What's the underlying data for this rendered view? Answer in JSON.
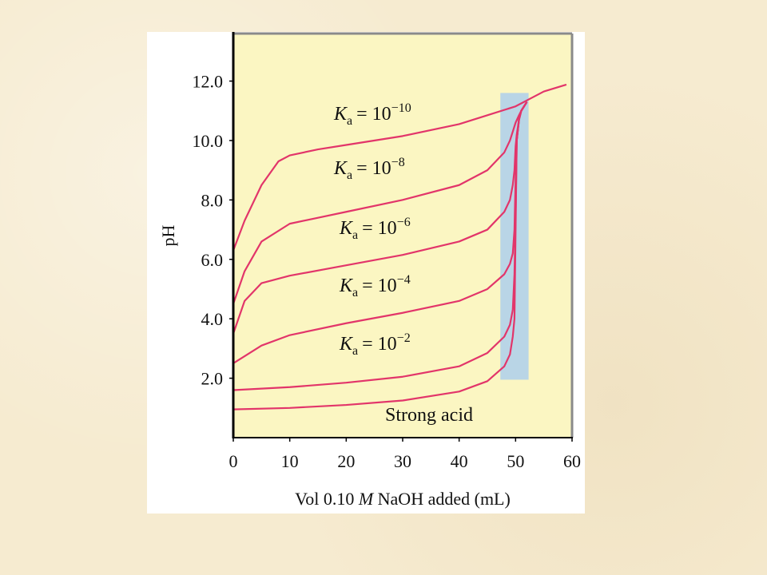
{
  "chart_data": {
    "type": "line",
    "xlabel": {
      "before": "Vol 0.10",
      "italic": "M",
      "after": "NaOH added (mL)"
    },
    "ylabel": "pH",
    "xlim": [
      0,
      60
    ],
    "ylim": [
      0,
      13.6
    ],
    "xticks": [
      0,
      10,
      20,
      30,
      40,
      50,
      60
    ],
    "yticks": [
      {
        "value": 2,
        "label": "2.0"
      },
      {
        "value": 4,
        "label": "4.0"
      },
      {
        "value": 6,
        "label": "6.0"
      },
      {
        "value": 8,
        "label": "8.0"
      },
      {
        "value": 10,
        "label": "10.0"
      },
      {
        "value": 12,
        "label": "12.0"
      }
    ],
    "background": "#fbf6c2",
    "equivalence_band": {
      "x": [
        47.3,
        52.3
      ],
      "y": [
        1.95,
        11.6
      ],
      "color": "#b9d5e6"
    },
    "series": [
      {
        "label": {
          "symbol": "K",
          "subscript": "a",
          "equals": "= 10",
          "exponent": "−10"
        },
        "color": "#e2356a",
        "x": [
          0,
          2,
          5,
          8,
          10,
          15,
          20,
          30,
          40,
          45,
          50,
          52,
          55,
          59
        ],
        "values": [
          6.3,
          7.3,
          8.5,
          9.3,
          9.5,
          9.7,
          9.85,
          10.15,
          10.55,
          10.85,
          11.15,
          11.35,
          11.65,
          11.88
        ]
      },
      {
        "label": {
          "symbol": "K",
          "subscript": "a",
          "equals": "= 10",
          "exponent": "−8"
        },
        "color": "#e2356a",
        "x": [
          0,
          2,
          5,
          10,
          15,
          20,
          30,
          40,
          45,
          48,
          49,
          49.5,
          50,
          50.6,
          51,
          52
        ],
        "values": [
          4.5,
          5.6,
          6.6,
          7.2,
          7.4,
          7.6,
          8.0,
          8.5,
          9.0,
          9.6,
          10.0,
          10.3,
          10.6,
          10.85,
          11.0,
          11.3
        ]
      },
      {
        "label": {
          "symbol": "K",
          "subscript": "a",
          "equals": "= 10",
          "exponent": "−6"
        },
        "color": "#e2356a",
        "x": [
          0,
          2,
          5,
          10,
          20,
          30,
          40,
          45,
          48,
          49,
          49.5,
          49.8,
          50,
          50.2,
          50.6,
          51,
          52
        ],
        "values": [
          3.5,
          4.6,
          5.2,
          5.45,
          5.8,
          6.15,
          6.6,
          7.0,
          7.6,
          8.0,
          8.5,
          9.0,
          9.8,
          10.2,
          10.7,
          11.0,
          11.3
        ]
      },
      {
        "label": {
          "symbol": "K",
          "subscript": "a",
          "equals": "= 10",
          "exponent": "−4"
        },
        "color": "#e2356a",
        "x": [
          0,
          5,
          10,
          20,
          30,
          40,
          45,
          48,
          49,
          49.5,
          49.8,
          50,
          50.2,
          50.6,
          51,
          52
        ],
        "values": [
          2.5,
          3.1,
          3.45,
          3.85,
          4.2,
          4.6,
          5.0,
          5.5,
          5.85,
          6.2,
          7.0,
          8.7,
          10.0,
          10.7,
          11.0,
          11.3
        ]
      },
      {
        "label": {
          "symbol": "K",
          "subscript": "a",
          "equals": "= 10",
          "exponent": "−2"
        },
        "color": "#e2356a",
        "x": [
          0,
          10,
          20,
          30,
          40,
          45,
          48,
          49,
          49.5,
          49.8,
          50,
          50.2,
          50.6,
          51,
          52
        ],
        "values": [
          1.6,
          1.7,
          1.85,
          2.05,
          2.4,
          2.85,
          3.4,
          3.8,
          4.3,
          5.5,
          7.5,
          10.0,
          10.7,
          11.0,
          11.3
        ]
      },
      {
        "name": "Strong acid",
        "color": "#e2356a",
        "x": [
          0,
          10,
          20,
          30,
          40,
          45,
          48,
          49,
          49.5,
          49.8,
          50,
          50.2,
          50.6,
          51,
          52
        ],
        "values": [
          0.95,
          1.0,
          1.1,
          1.25,
          1.55,
          1.9,
          2.4,
          2.8,
          3.4,
          4.0,
          7.0,
          10.0,
          10.7,
          11.0,
          11.3
        ]
      }
    ]
  }
}
